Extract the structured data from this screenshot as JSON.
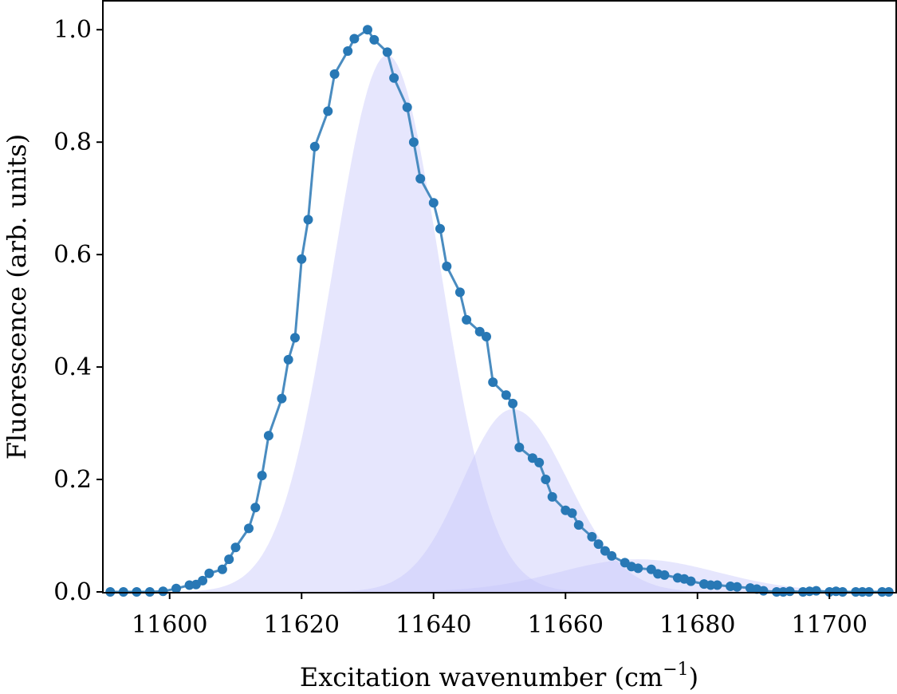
{
  "chart_data": {
    "type": "scatter",
    "xlabel": "Excitation wavenumber (cm",
    "xlabel_superscript": "−1",
    "xlabel_suffix": ")",
    "ylabel": "Fluorescence (arb. units)",
    "xlim": [
      11590,
      11710
    ],
    "ylim": [
      0,
      1.05
    ],
    "xticks": [
      11600,
      11620,
      11640,
      11660,
      11680,
      11700
    ],
    "yticks": [
      0.0,
      0.2,
      0.4,
      0.6,
      0.8,
      1.0
    ],
    "xtick_labels": [
      "11600",
      "11620",
      "11640",
      "11660",
      "11680",
      "11700"
    ],
    "ytick_labels": [
      "0.0",
      "0.2",
      "0.4",
      "0.6",
      "0.8",
      "1.0"
    ],
    "grid": false,
    "colors": {
      "points": "#2878b5",
      "fit_line": "#4a8cc0",
      "component_fill": "#c8c8fa"
    },
    "components": [
      {
        "center": 11633.0,
        "amplitude": 0.955,
        "sigma_left": 8.2,
        "sigma_right": 8.0
      },
      {
        "center": 11652.0,
        "amplitude": 0.325,
        "sigma_left": 7.6,
        "sigma_right": 8.4
      },
      {
        "center": 11671.0,
        "amplitude": 0.058,
        "sigma_left": 12.0,
        "sigma_right": 12.0
      }
    ],
    "points": {
      "x": [
        11591,
        11593,
        11595,
        11597,
        11599,
        11601,
        11603,
        11604,
        11605,
        11606,
        11608,
        11609,
        11610,
        11612,
        11613,
        11614,
        11615,
        11617,
        11618,
        11619,
        11620,
        11621,
        11622,
        11624,
        11625,
        11627,
        11628,
        11630,
        11631,
        11633,
        11634,
        11636,
        11637,
        11638,
        11640,
        11641,
        11642,
        11644,
        11645,
        11647,
        11648,
        11649,
        11651,
        11652,
        11653,
        11655,
        11656,
        11657,
        11658,
        11660,
        11661,
        11662,
        11664,
        11665,
        11666,
        11667,
        11669,
        11670,
        11671,
        11673,
        11674,
        11675,
        11677,
        11678,
        11679,
        11681,
        11682,
        11683,
        11685,
        11686,
        11688,
        11689,
        11690,
        11692,
        11693,
        11694,
        11696,
        11697,
        11698,
        11700,
        11701,
        11702,
        11704,
        11705,
        11706,
        11708,
        11709
      ],
      "y": [
        0.0,
        0.0,
        0.0,
        0.0,
        0.001,
        0.006,
        0.012,
        0.013,
        0.02,
        0.033,
        0.04,
        0.058,
        0.079,
        0.113,
        0.15,
        0.207,
        0.278,
        0.344,
        0.413,
        0.452,
        0.592,
        0.662,
        0.792,
        0.855,
        0.921,
        0.962,
        0.984,
        1.0,
        0.982,
        0.96,
        0.914,
        0.862,
        0.8,
        0.735,
        0.692,
        0.646,
        0.579,
        0.533,
        0.484,
        0.463,
        0.454,
        0.373,
        0.35,
        0.335,
        0.257,
        0.238,
        0.23,
        0.2,
        0.169,
        0.145,
        0.14,
        0.119,
        0.098,
        0.085,
        0.073,
        0.064,
        0.052,
        0.045,
        0.042,
        0.04,
        0.032,
        0.03,
        0.025,
        0.023,
        0.019,
        0.014,
        0.012,
        0.012,
        0.01,
        0.009,
        0.007,
        0.005,
        0.002,
        0.0,
        0.0,
        0.001,
        0.0,
        0.001,
        0.002,
        0.0,
        0.001,
        0.0,
        0.0,
        0.0,
        0.0,
        0.0,
        0.0
      ]
    }
  }
}
